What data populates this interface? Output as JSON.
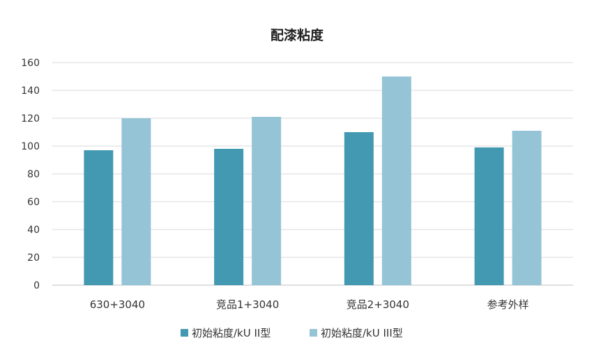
{
  "chart_data": {
    "type": "bar",
    "title": "配漆粘度",
    "categories": [
      "630+3040",
      "竞品1+3040",
      "竞品2+3040",
      "参考外样"
    ],
    "series": [
      {
        "name": "初始粘度/kU II型",
        "values": [
          97,
          98,
          110,
          99
        ],
        "color": "#4399B1"
      },
      {
        "name": "初始粘度/kU III型",
        "values": [
          120,
          121,
          150,
          111
        ],
        "color": "#95C4D6"
      }
    ],
    "yticks": [
      0,
      20,
      40,
      60,
      80,
      100,
      120,
      140,
      160
    ],
    "ylim": [
      0,
      160
    ],
    "grid": true,
    "legend_position": "bottom"
  }
}
